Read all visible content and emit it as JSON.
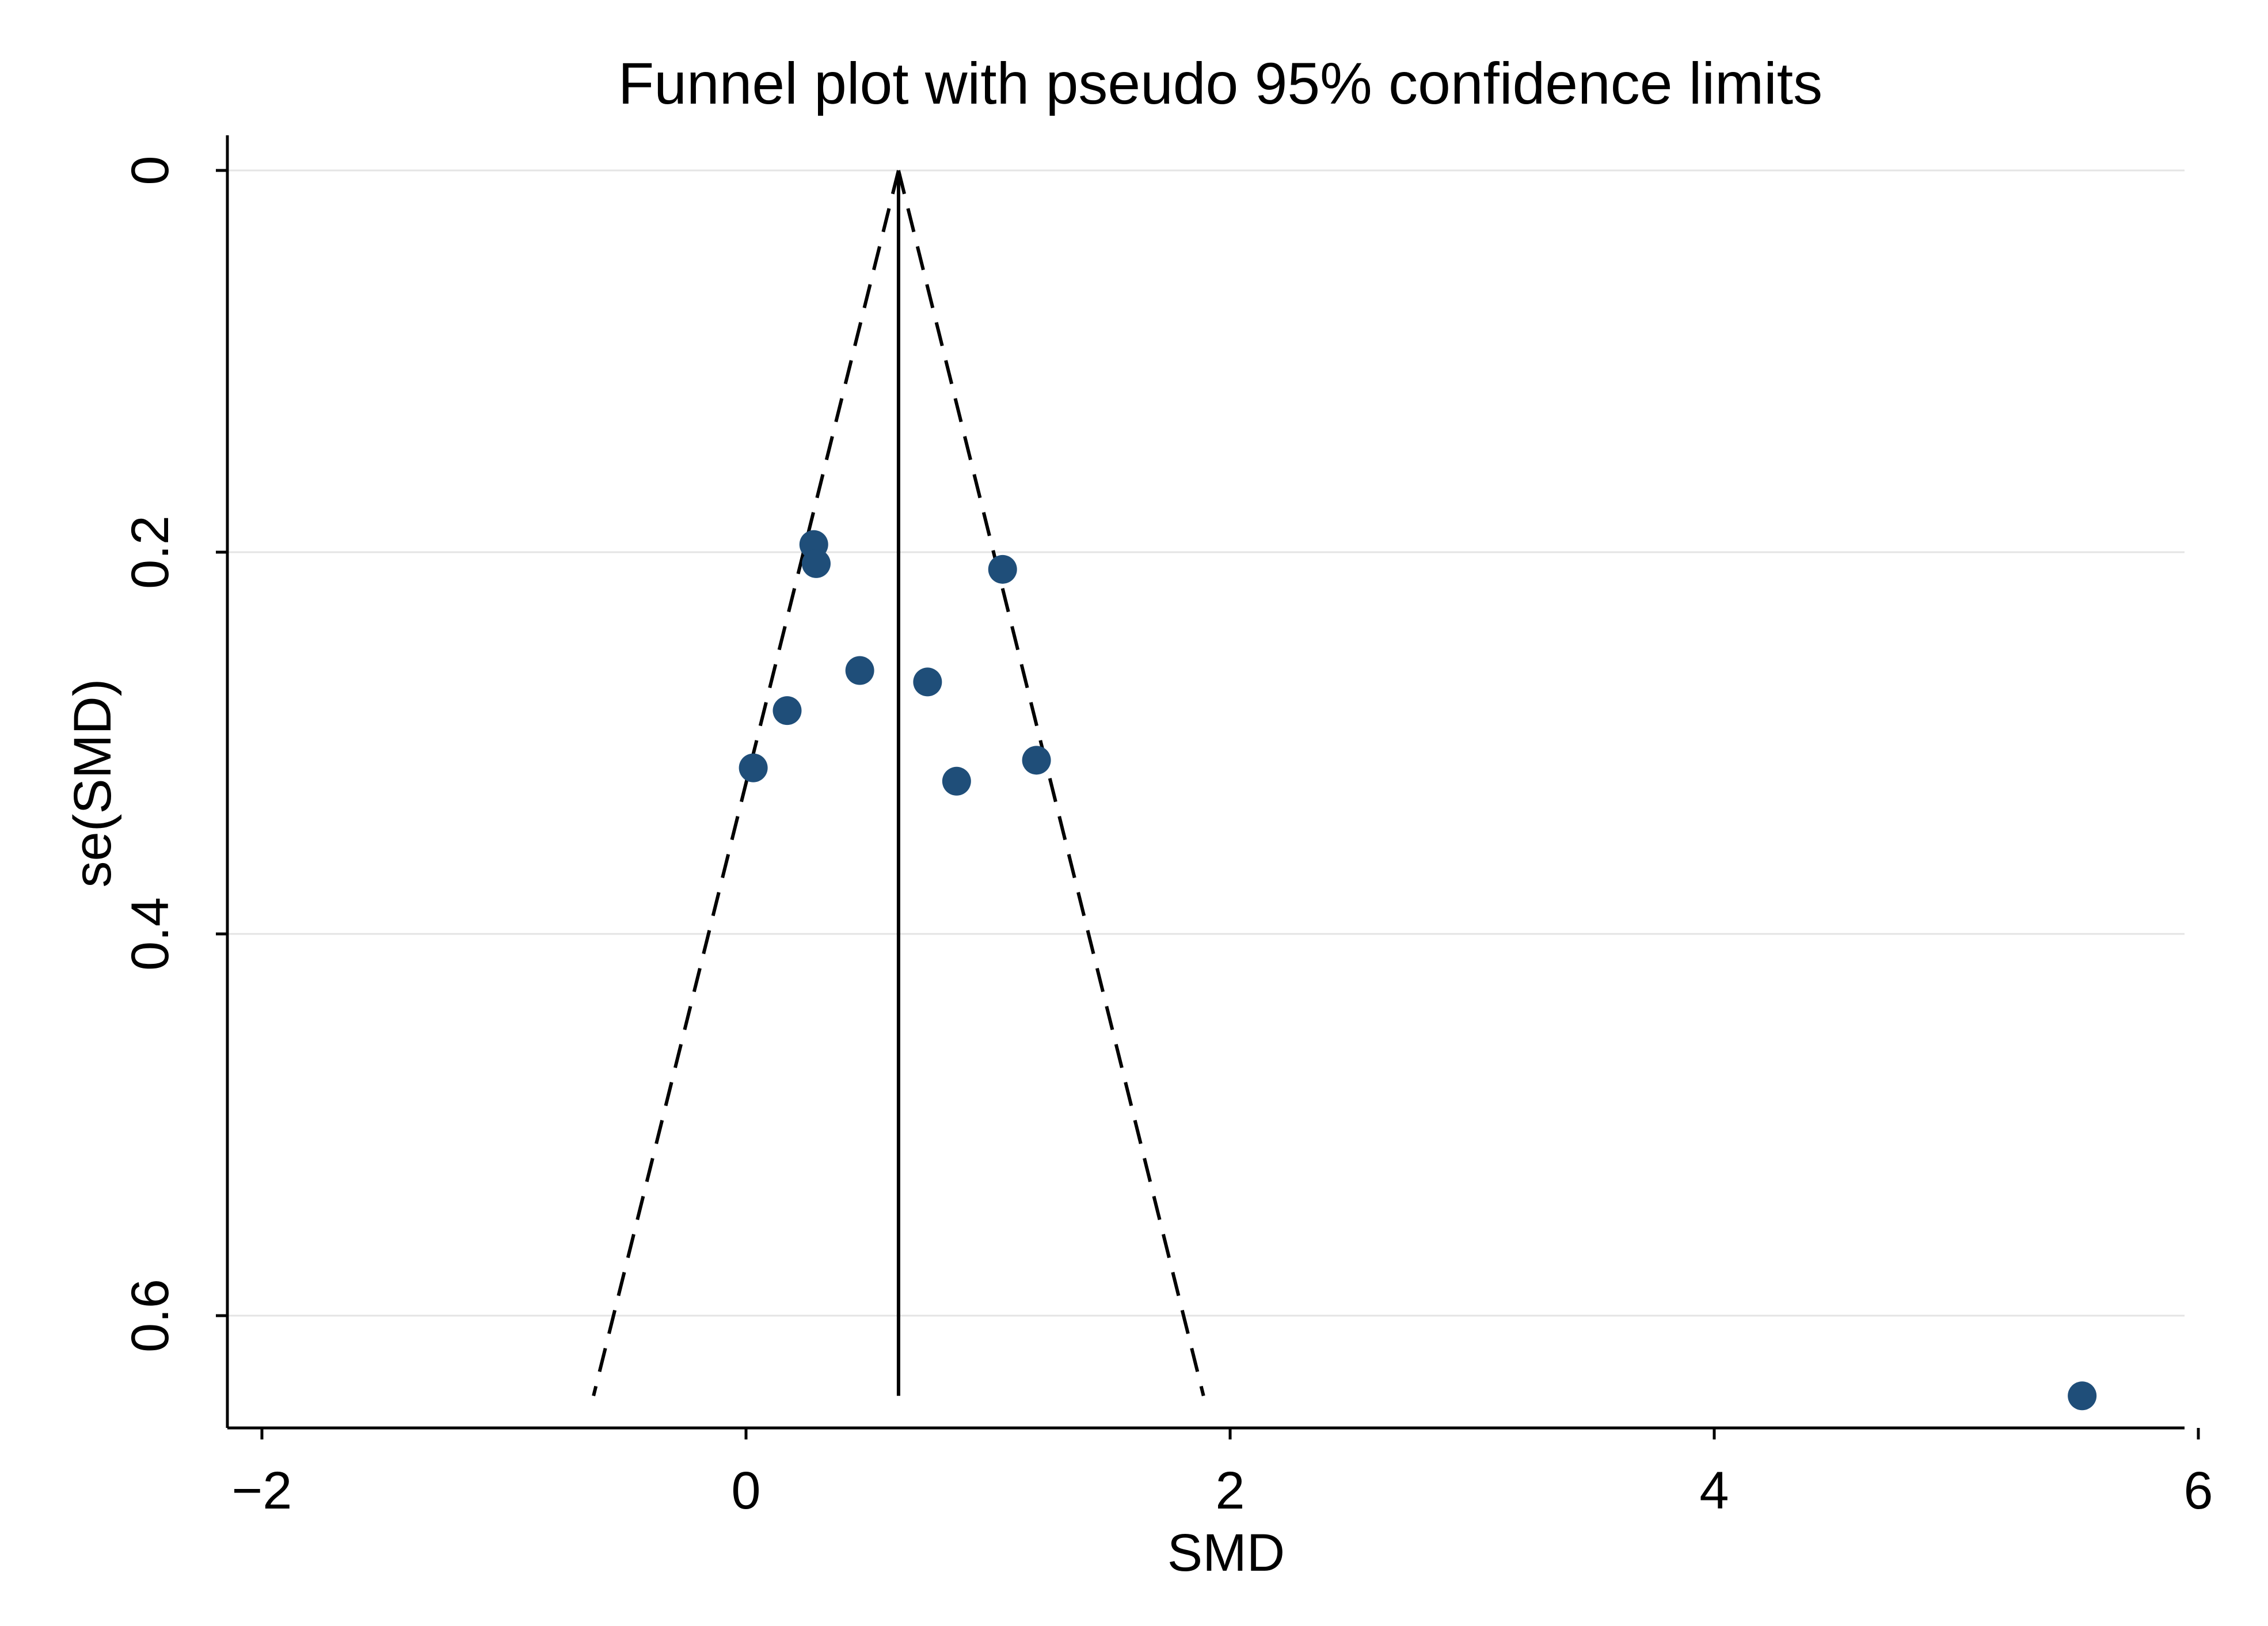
{
  "chart_data": {
    "type": "scatter",
    "title": "Funnel plot with pseudo 95% confidence limits",
    "xlabel": "SMD",
    "ylabel": "se(SMD)",
    "xlim": [
      -2,
      6
    ],
    "ylim": [
      0,
      0.66
    ],
    "y_reversed": true,
    "x_ticks": [
      {
        "value": -2,
        "label": "−2"
      },
      {
        "value": 0,
        "label": "0"
      },
      {
        "value": 2,
        "label": "2"
      },
      {
        "value": 4,
        "label": "4"
      },
      {
        "value": 6,
        "label": "6"
      }
    ],
    "y_ticks": [
      {
        "value": 0,
        "label": "0"
      },
      {
        "value": 0.2,
        "label": "0.2"
      },
      {
        "value": 0.4,
        "label": "0.4"
      },
      {
        "value": 0.6,
        "label": "0.6"
      }
    ],
    "grid": true,
    "points": [
      {
        "x": 0.28,
        "y": 0.196
      },
      {
        "x": 0.29,
        "y": 0.206
      },
      {
        "x": 1.06,
        "y": 0.209
      },
      {
        "x": 0.47,
        "y": 0.262
      },
      {
        "x": 0.75,
        "y": 0.268
      },
      {
        "x": 0.17,
        "y": 0.283
      },
      {
        "x": 0.03,
        "y": 0.313
      },
      {
        "x": 1.2,
        "y": 0.309
      },
      {
        "x": 0.87,
        "y": 0.32
      },
      {
        "x": 5.52,
        "y": 0.642
      }
    ],
    "pooled_estimate": 0.63,
    "pooled_line_se_max": 0.642,
    "ci_limits": {
      "z": 1.96,
      "se_max": 0.642,
      "lower_at_se_max": -0.63,
      "upper_at_se_max": 1.89
    },
    "colors": {
      "points": "#1f4e79",
      "lines": "#000000",
      "grid": "#e4e4e4",
      "background": "#ffffff"
    }
  }
}
